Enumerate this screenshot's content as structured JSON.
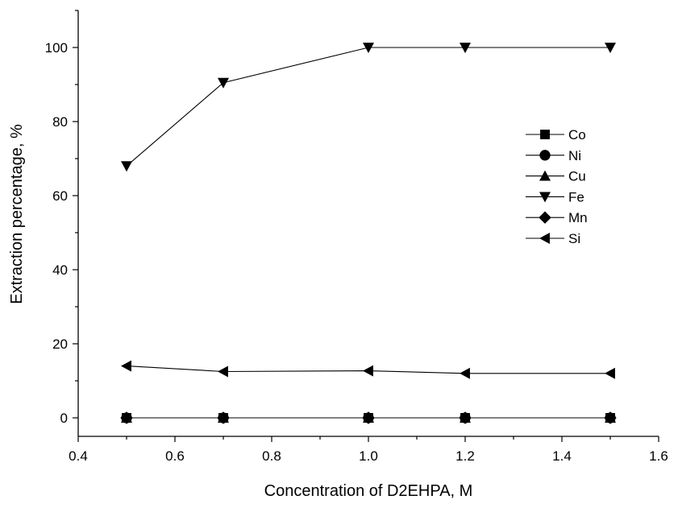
{
  "chart_data": {
    "type": "line",
    "title": "",
    "xlabel": "Concentration of D2EHPA, M",
    "ylabel": "Extraction percentage, %",
    "xlim": [
      0.4,
      1.6
    ],
    "ylim": [
      -5,
      110
    ],
    "xticks": [
      0.4,
      0.6,
      0.8,
      1.0,
      1.2,
      1.4,
      1.6
    ],
    "xtick_labels": [
      "0.4",
      "0.6",
      "0.8",
      "1.0",
      "1.2",
      "1.4",
      "1.6"
    ],
    "yticks": [
      0,
      20,
      40,
      60,
      80,
      100
    ],
    "ytick_labels": [
      "0",
      "20",
      "40",
      "60",
      "80",
      "100"
    ],
    "grid": false,
    "legend_position": "right",
    "x": [
      0.5,
      0.7,
      1.0,
      1.2,
      1.5
    ],
    "series": [
      {
        "name": "Co",
        "marker": "square",
        "values": [
          0,
          0,
          0,
          0,
          0
        ]
      },
      {
        "name": "Ni",
        "marker": "circle",
        "values": [
          0,
          0,
          0,
          0,
          0
        ]
      },
      {
        "name": "Cu",
        "marker": "triangle-up",
        "values": [
          0,
          0,
          0,
          0,
          0
        ]
      },
      {
        "name": "Fe",
        "marker": "triangle-down",
        "values": [
          68,
          90.5,
          100,
          100,
          100
        ]
      },
      {
        "name": "Mn",
        "marker": "diamond",
        "values": [
          0,
          0,
          0,
          0,
          0
        ]
      },
      {
        "name": "Si",
        "marker": "triangle-left",
        "values": [
          14,
          12.5,
          12.7,
          12,
          12
        ]
      }
    ]
  }
}
